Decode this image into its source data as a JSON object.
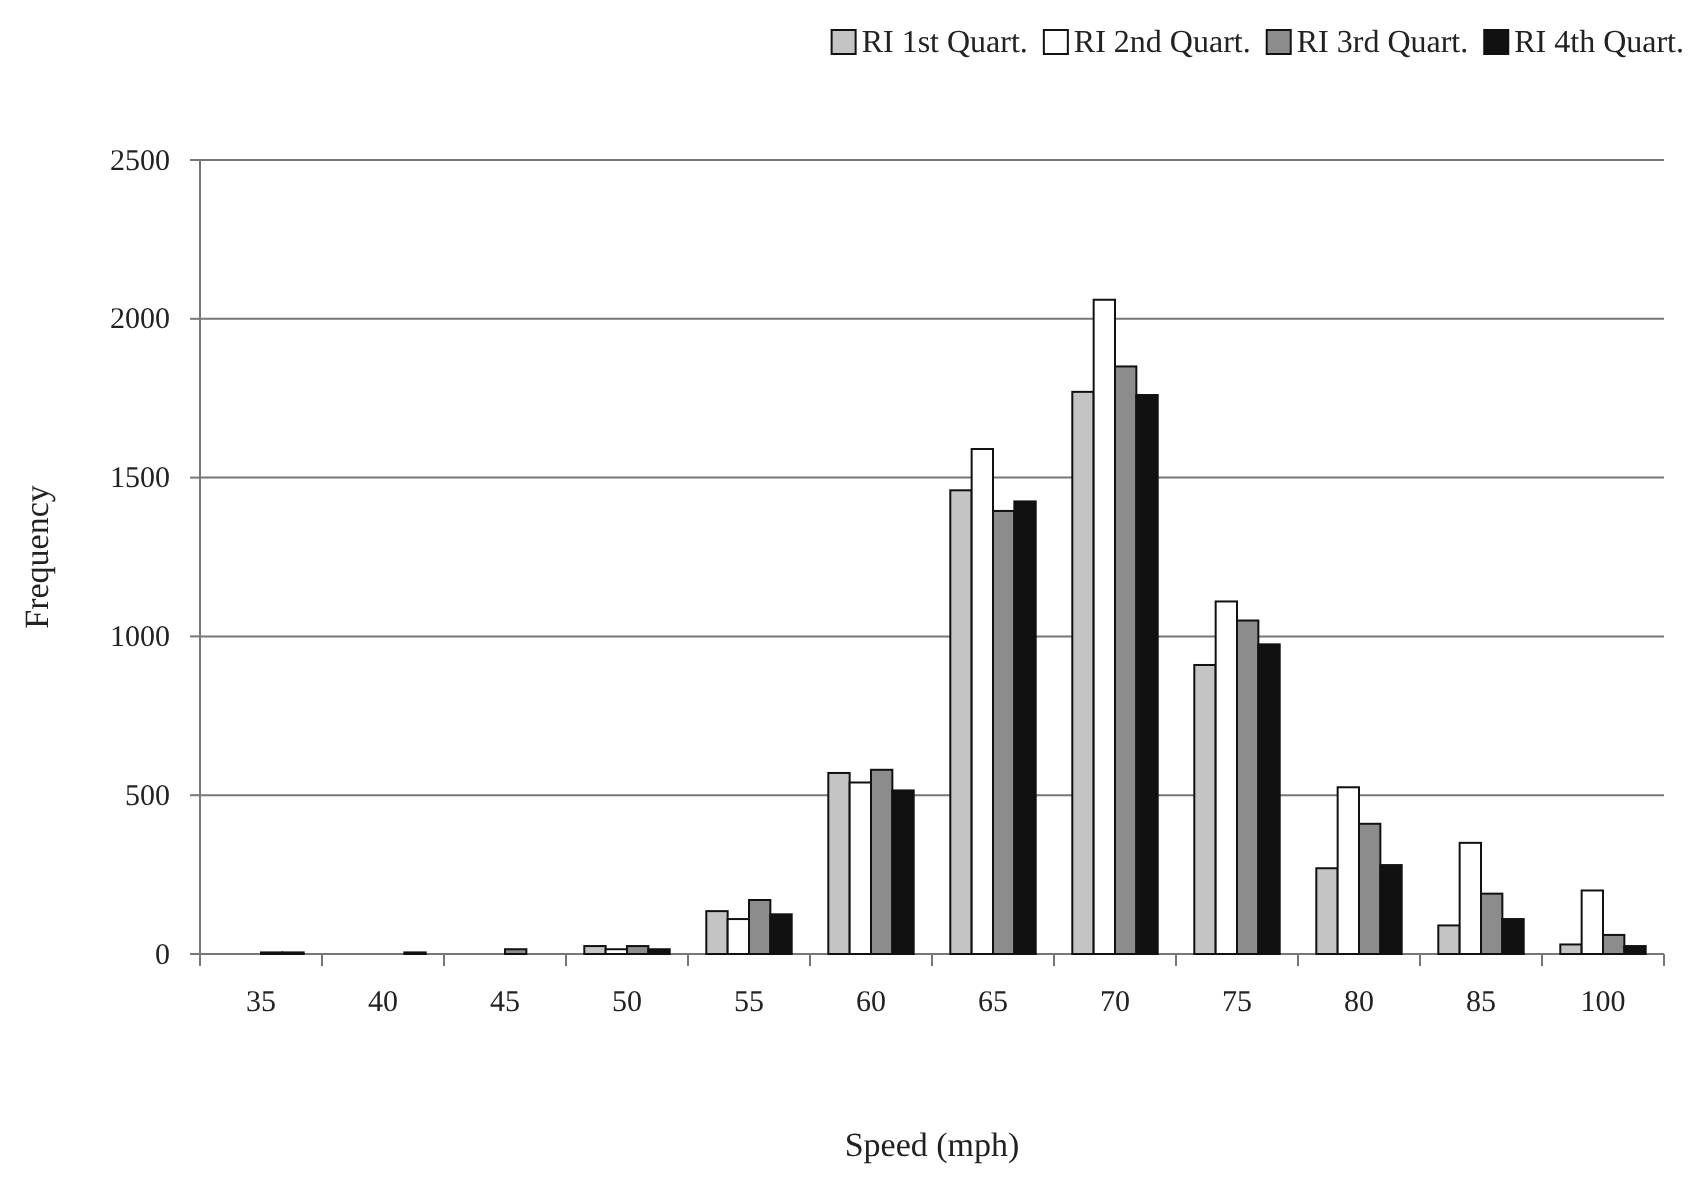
{
  "chart_data": {
    "type": "bar",
    "xlabel": "Speed (mph)",
    "ylabel": "Frequency",
    "categories": [
      "35",
      "40",
      "45",
      "50",
      "55",
      "60",
      "65",
      "70",
      "75",
      "80",
      "85",
      "100"
    ],
    "series": [
      {
        "name": "RI 1st Quart.",
        "color": "#c4c4c4",
        "values": [
          null,
          0,
          0,
          25,
          135,
          570,
          1460,
          1770,
          910,
          270,
          90,
          30
        ]
      },
      {
        "name": "RI 2nd Quart.",
        "color": "#ffffff",
        "values": [
          null,
          0,
          0,
          15,
          110,
          540,
          1590,
          2060,
          1110,
          525,
          350,
          200
        ]
      },
      {
        "name": "RI 3rd Quart.",
        "color": "#8c8c8c",
        "values": [
          5,
          0,
          15,
          25,
          170,
          580,
          1395,
          1850,
          1050,
          410,
          190,
          60
        ]
      },
      {
        "name": "RI 4th Quart.",
        "color": "#111111",
        "values": [
          5,
          5,
          0,
          15,
          125,
          515,
          1425,
          1760,
          975,
          280,
          110,
          25
        ]
      }
    ],
    "ylim": [
      0,
      2500
    ],
    "yticks": [
      0,
      500,
      1000,
      1500,
      2000,
      2500
    ],
    "grid": "y",
    "legend": "top right"
  }
}
